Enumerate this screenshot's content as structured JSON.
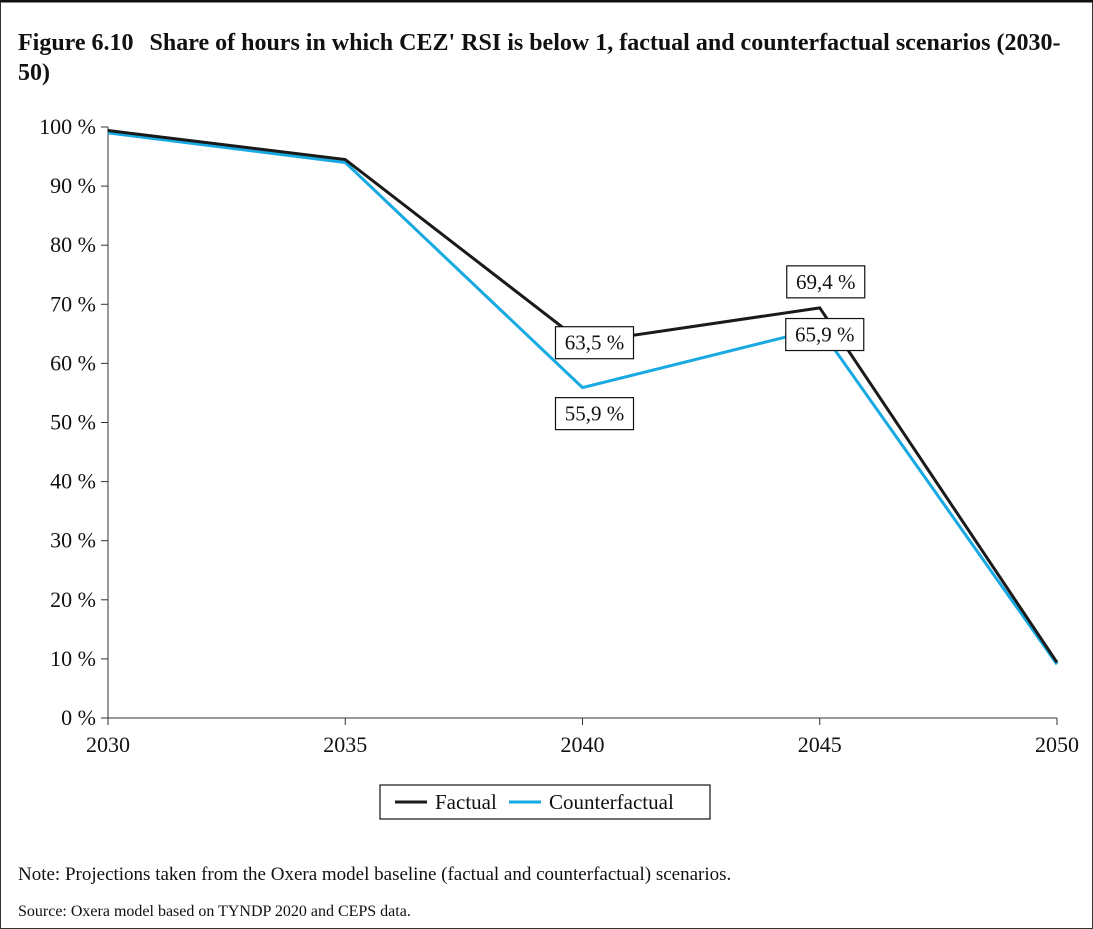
{
  "figure": {
    "number": "Figure 6.10",
    "title": "Share of hours in which CEZ' RSI is below 1, factual and counterfactual scenarios (2030-50)",
    "note": "Note: Projections taken from the Oxera model baseline (factual and counterfactual) scenarios.",
    "source": "Source: Oxera model based on TYNDP 2020 and CEPS data."
  },
  "chart_data": {
    "type": "line",
    "title": "Share of hours in which CEZ' RSI is below 1, factual and counterfactual scenarios (2030-50)",
    "xlabel": "",
    "ylabel": "",
    "x": [
      2030,
      2035,
      2040,
      2045,
      2050
    ],
    "x_tick_labels": [
      "2030",
      "2035",
      "2040",
      "2045",
      "2050"
    ],
    "ylim": [
      0,
      100
    ],
    "y_ticks": [
      0,
      10,
      20,
      30,
      40,
      50,
      60,
      70,
      80,
      90,
      100
    ],
    "y_tick_labels": [
      "0 %",
      "10 %",
      "20 %",
      "30 %",
      "40 %",
      "50 %",
      "60 %",
      "70 %",
      "80 %",
      "90 %",
      "100 %"
    ],
    "grid": false,
    "legend": "bottom-center",
    "series": [
      {
        "name": "Factual",
        "color": "#1a1a1a",
        "values": [
          99.4,
          94.5,
          63.5,
          69.4,
          9.4
        ]
      },
      {
        "name": "Counterfactual",
        "color": "#17a9e1",
        "values": [
          99.0,
          94.0,
          55.9,
          65.9,
          9.1
        ]
      }
    ],
    "annotations": [
      {
        "series": 0,
        "x": 2040,
        "text": "63,5 %"
      },
      {
        "series": 0,
        "x": 2045,
        "text": "69,4 %"
      },
      {
        "series": 1,
        "x": 2040,
        "text": "55,9 %"
      },
      {
        "series": 1,
        "x": 2045,
        "text": "65,9 %"
      }
    ]
  }
}
